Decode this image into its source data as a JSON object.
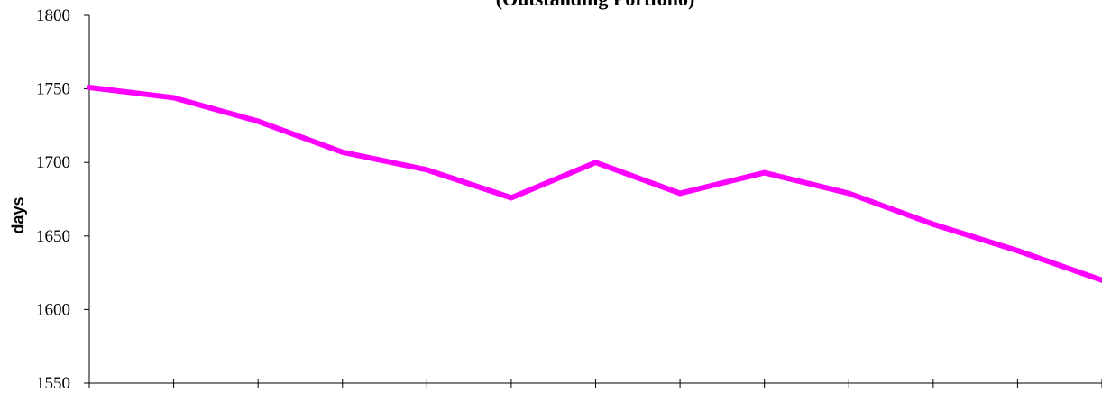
{
  "chart_data": {
    "type": "line",
    "title": "(Outstanding Portfolio)",
    "xlabel": "",
    "ylabel": "days",
    "ylim": [
      1550,
      1800
    ],
    "yticks": [
      1550,
      1600,
      1650,
      1700,
      1750,
      1800
    ],
    "grid": false,
    "legend": "none",
    "series": [
      {
        "color": "#ff00ff",
        "values": [
          1751,
          1744,
          1728,
          1707,
          1695,
          1676,
          1700,
          1679,
          1693,
          1679,
          1658,
          1640,
          1620
        ]
      }
    ]
  }
}
